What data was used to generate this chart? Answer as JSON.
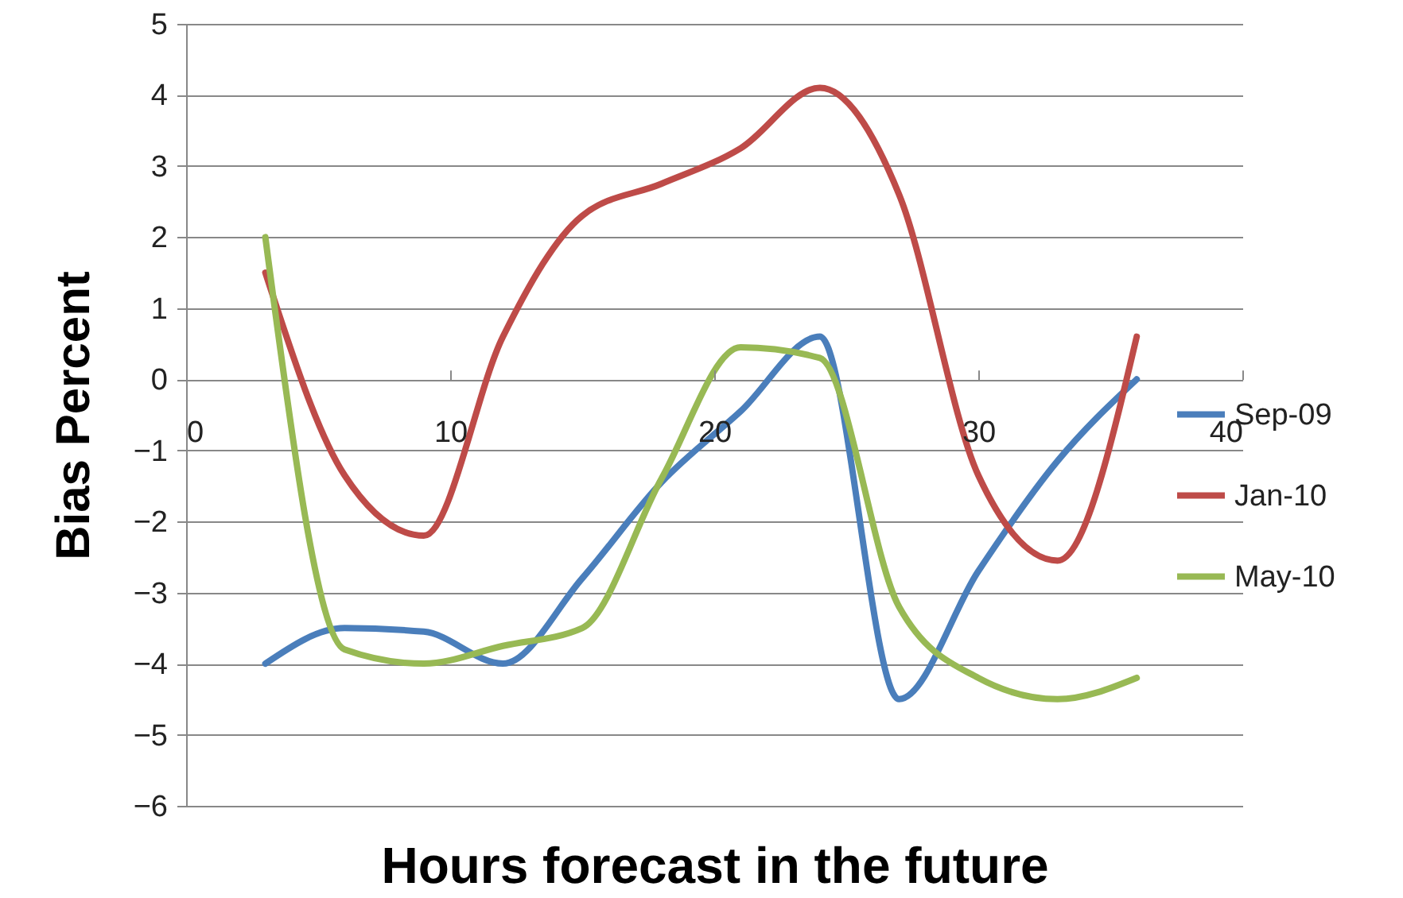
{
  "chart_data": {
    "type": "line",
    "xlabel": "Hours forecast in the future",
    "ylabel": "Bias Percent",
    "x": [
      3,
      6,
      9,
      12,
      15,
      18,
      21,
      24,
      27,
      30,
      33,
      36
    ],
    "series": [
      {
        "name": "Sep-09",
        "color": "#4a7ebb",
        "values": [
          -4.0,
          -3.5,
          -3.55,
          -4.0,
          -2.8,
          -1.45,
          -0.45,
          0.6,
          -4.5,
          -2.7,
          -1.15,
          0.0
        ]
      },
      {
        "name": "Jan-10",
        "color": "#be4b48",
        "values": [
          1.5,
          -1.35,
          -2.2,
          0.6,
          2.3,
          2.75,
          3.25,
          4.1,
          2.6,
          -1.35,
          -2.55,
          0.6
        ]
      },
      {
        "name": "May-10",
        "color": "#98b954",
        "values": [
          2.0,
          -3.8,
          -4.0,
          -3.75,
          -3.5,
          -1.4,
          0.45,
          0.3,
          -3.2,
          -4.2,
          -4.5,
          -4.2
        ]
      }
    ],
    "xlim": [
      0,
      40
    ],
    "xticks": [
      0,
      10,
      20,
      30,
      40
    ],
    "ylim": [
      -6,
      5
    ],
    "yticks": [
      -6,
      -5,
      -4,
      -3,
      -2,
      -1,
      0,
      1,
      2,
      3,
      4,
      5
    ],
    "grid": "y",
    "legend": "right",
    "marker": "none",
    "line_style": "solid"
  }
}
